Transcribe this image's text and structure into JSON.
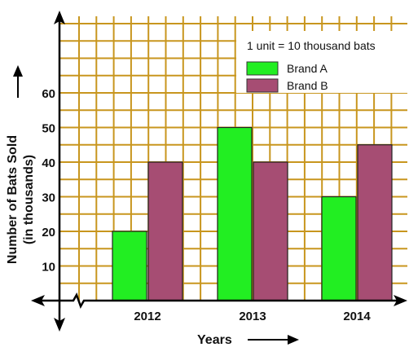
{
  "chart_data": {
    "type": "bar",
    "categories": [
      "2012",
      "2013",
      "2014"
    ],
    "series": [
      {
        "name": "Brand A",
        "values": [
          20,
          50,
          30
        ],
        "color": "#22ee22"
      },
      {
        "name": "Brand B",
        "values": [
          40,
          40,
          45
        ],
        "color": "#a64d73"
      }
    ],
    "xlabel": "Years",
    "ylabel": "Number of Bats Sold",
    "ylabel_sub": "(in thousands)",
    "yticks": [
      10,
      20,
      30,
      40,
      50,
      60
    ],
    "ylim": [
      0,
      80
    ],
    "grid": true,
    "grid_color": "#c8961e",
    "legend_note": "1 unit = 10 thousand bats",
    "legend_position": "top-right"
  }
}
